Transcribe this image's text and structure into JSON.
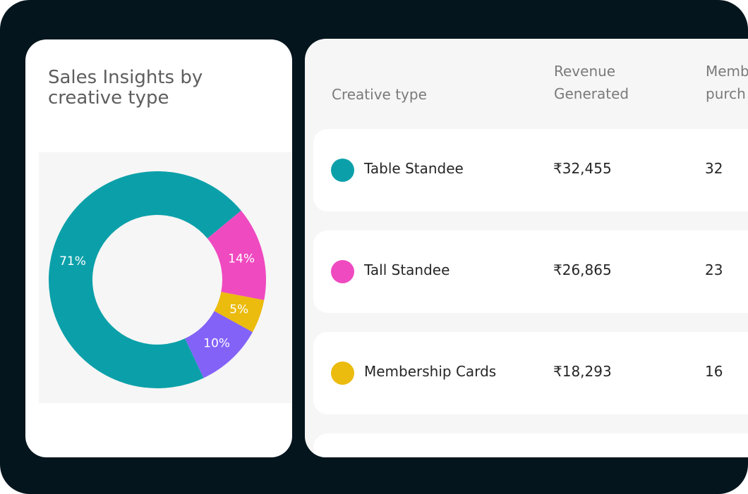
{
  "chart_card": {
    "title": "Sales Insights by creative type"
  },
  "chart_data": {
    "type": "pie",
    "style": "donut",
    "slices": [
      {
        "label": "71%",
        "value": 71,
        "color": "#0ba0a9"
      },
      {
        "label": "14%",
        "value": 14,
        "color": "#ef4ac0"
      },
      {
        "label": "5%",
        "value": 5,
        "color": "#ebbb0e"
      },
      {
        "label": "10%",
        "value": 10,
        "color": "#8362f8"
      }
    ]
  },
  "table": {
    "headers": [
      "Creative type",
      "Revenue\nGenerated",
      "Memb\npurch"
    ],
    "rows": [
      {
        "color": "#0ba0a9",
        "name": "Table Standee",
        "revenue": "₹32,455",
        "count": "32"
      },
      {
        "color": "#ef4ac0",
        "name": "Tall Standee",
        "revenue": "₹26,865",
        "count": "23"
      },
      {
        "color": "#ebbb0e",
        "name": "Membership Cards",
        "revenue": "₹18,293",
        "count": "16"
      }
    ]
  }
}
